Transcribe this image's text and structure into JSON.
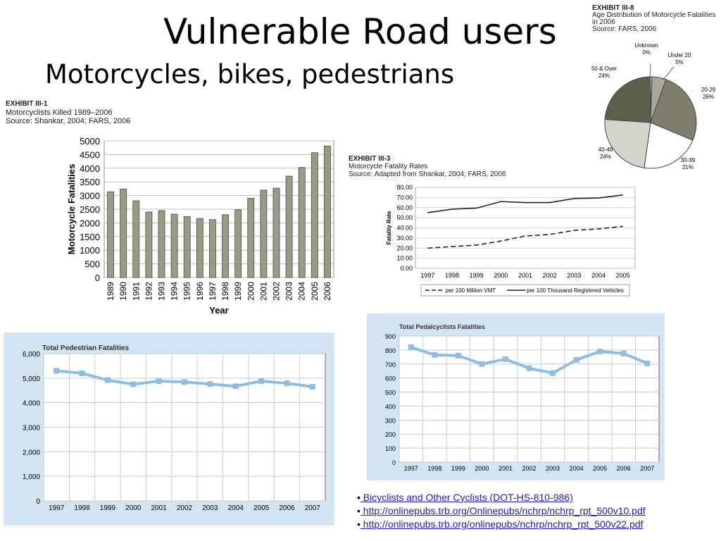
{
  "slide": {
    "title": "Vulnerable Road users",
    "subtitle": "Motorcycles, bikes, pedestrians"
  },
  "links": [
    {
      "bullet": "•",
      "text": " Bicyclists and Other Cyclists (DOT-HS-810-986)"
    },
    {
      "bullet": "•",
      "text": "  http://onlinepubs.trb.org/Onlinepubs/nchrp/nchrp_rpt_500v10.pdf"
    },
    {
      "bullet": "•",
      "text": " http://onlinepubs.trb.org/onlinepubs/nchrp/nchrp_rpt_500v22.pdf"
    }
  ],
  "exhibits": {
    "moto_killed": {
      "id": "EXHIBIT III-1",
      "line1": "Motorcyclists Killed 1989–2006",
      "line2": "Source: Shankar, 2004; FARS, 2006"
    },
    "rates": {
      "id": "EXHIBIT III-3",
      "line1": "Motorcycle Fatality Rates",
      "line2": "Source: Adapted from Shankar, 2004; FARS, 2006"
    },
    "age": {
      "id": "EXHIBIT III-8",
      "line1": "Age Distribution of Motorcycle Fatalities",
      "line2": "in 2006",
      "line3": "Source: FARS, 2006"
    }
  },
  "colors": {
    "bar_fill": "#9a9a86",
    "bar_stroke": "#4a4a40",
    "light_panel": "#d3e4f2",
    "light_line": "#8fbde2",
    "grid": "#bcbcbc"
  },
  "chart_data": [
    {
      "id": "motorcyclists_killed",
      "type": "bar",
      "categories": [
        "1989",
        "1990",
        "1991",
        "1992",
        "1993",
        "1994",
        "1995",
        "1996",
        "1997",
        "1998",
        "1999",
        "2000",
        "2001",
        "2002",
        "2003",
        "2004",
        "2005",
        "2006"
      ],
      "values": [
        3140,
        3240,
        2810,
        2400,
        2450,
        2320,
        2230,
        2160,
        2120,
        2300,
        2480,
        2900,
        3200,
        3270,
        3710,
        4030,
        4570,
        4810
      ],
      "xlabel": "Year",
      "ylabel": "Motorcycle Fatalities",
      "ylim": [
        0,
        5000
      ],
      "yticks": [
        "0",
        "500",
        "1000",
        "1500",
        "2000",
        "2500",
        "3000",
        "3500",
        "4000",
        "4500",
        "5000"
      ],
      "grid": true
    },
    {
      "id": "motorcycle_fatality_rates",
      "type": "line",
      "categories": [
        "1997",
        "1998",
        "1999",
        "2000",
        "2001",
        "2002",
        "2003",
        "2004",
        "2005"
      ],
      "series": [
        {
          "name": "per 100 Million VMT",
          "style": "dashed",
          "values": [
            20.0,
            21.5,
            23.0,
            27.0,
            32.0,
            33.5,
            37.5,
            39.0,
            41.5
          ]
        },
        {
          "name": "per 100 Thousand Registered Vehicles",
          "style": "solid",
          "values": [
            55.0,
            58.5,
            59.5,
            66.0,
            65.0,
            65.0,
            69.0,
            69.5,
            72.5
          ]
        }
      ],
      "ylabel": "Fatality Rate",
      "ylim": [
        0,
        80
      ],
      "yticks": [
        "0.00",
        "10.00",
        "20.00",
        "30.00",
        "40.00",
        "50.00",
        "60.00",
        "70.00",
        "80.00"
      ],
      "legend": "bottom",
      "grid": true
    },
    {
      "id": "age_distribution",
      "type": "pie",
      "slices": [
        {
          "label": "Unknown",
          "value_label": "0%",
          "value": 0.5,
          "color": "#ffffff"
        },
        {
          "label": "Under 20",
          "value_label": "5%",
          "value": 5,
          "color": "#a9a99a"
        },
        {
          "label": "20-29",
          "value_label": "26%",
          "value": 26,
          "color": "#7e7e6a"
        },
        {
          "label": "30-39",
          "value_label": "21%",
          "value": 21,
          "color": "#ffffff"
        },
        {
          "label": "40-49",
          "value_label": "24%",
          "value": 24,
          "color": "#d4d4cc"
        },
        {
          "label": "50 & Over",
          "value_label": "24%",
          "value": 24,
          "color": "#5e5e4c"
        }
      ]
    },
    {
      "id": "total_pedestrian_fatalities",
      "type": "line",
      "title": "Total Pedestrian Fatalities",
      "categories": [
        "1997",
        "1998",
        "1999",
        "2000",
        "2001",
        "2002",
        "2003",
        "2004",
        "2005",
        "2006",
        "2007"
      ],
      "values": [
        5300,
        5200,
        4920,
        4750,
        4880,
        4840,
        4760,
        4670,
        4880,
        4790,
        4650
      ],
      "ylim": [
        0,
        6000
      ],
      "yticks": [
        "0",
        "1,000",
        "2,000",
        "3,000",
        "4,000",
        "5,000",
        "6,000"
      ],
      "grid": true
    },
    {
      "id": "total_pedalcyclists_fatalities",
      "type": "line",
      "title": "Total Pedalcyclists Fatalities",
      "categories": [
        "1997",
        "1998",
        "1999",
        "2000",
        "2001",
        "2002",
        "2003",
        "2004",
        "2005",
        "2006",
        "2007"
      ],
      "values": [
        820,
        765,
        760,
        700,
        735,
        670,
        635,
        730,
        790,
        775,
        705
      ],
      "ylim": [
        0,
        900
      ],
      "yticks": [
        "0",
        "100",
        "200",
        "300",
        "400",
        "500",
        "600",
        "700",
        "800",
        "900"
      ],
      "grid": true
    }
  ]
}
